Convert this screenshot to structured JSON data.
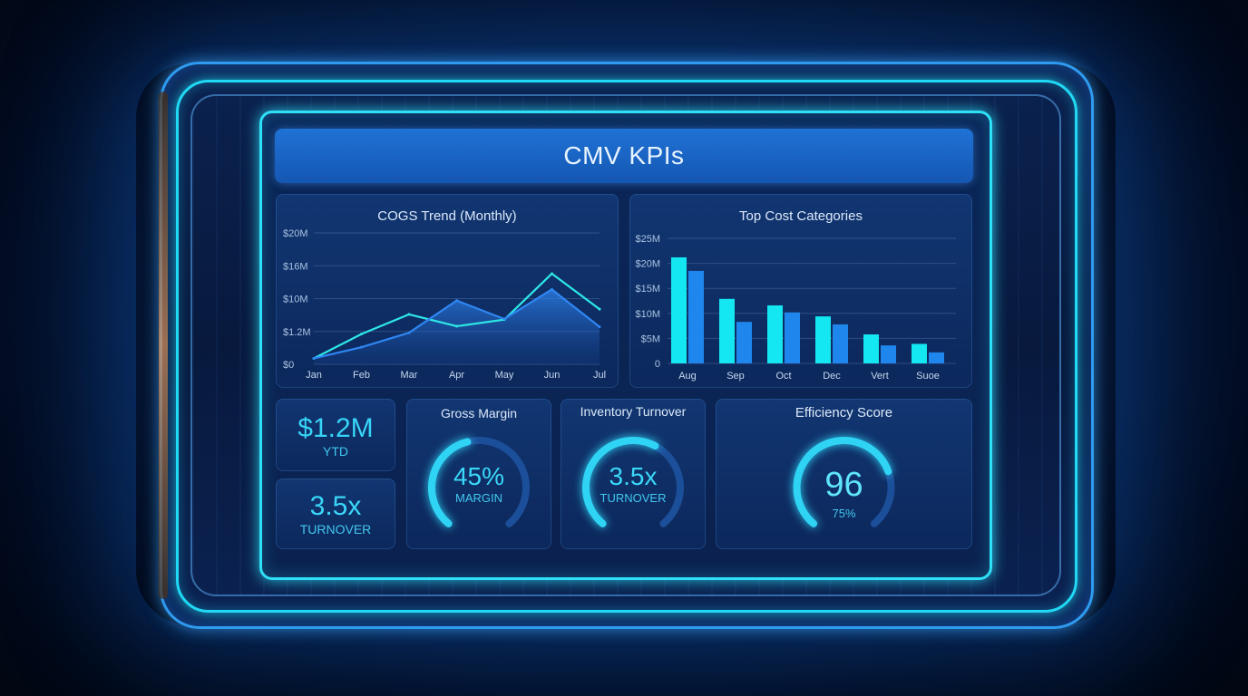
{
  "header": {
    "title": "CMV KPIs"
  },
  "colors": {
    "accent": "#2ee0f7",
    "line_primary": "#2ee8e6",
    "line_secondary": "#2f86f2",
    "bar_primary": "#14e6f2",
    "bar_secondary": "#1f86ee"
  },
  "chart_data": [
    {
      "type": "line",
      "title": "COGS Trend (Monthly)",
      "x": [
        "Jan",
        "Feb",
        "Mar",
        "Apr",
        "May",
        "Jun",
        "Jul"
      ],
      "y_ticks": [
        "$0",
        "$1.2M",
        "$10M",
        "$16M",
        "$20M"
      ],
      "ylim": [
        0,
        20
      ],
      "series": [
        {
          "values": [
            0.9,
            4.6,
            7.6,
            5.8,
            6.8,
            13.8,
            8.4
          ]
        },
        {
          "values": [
            0.9,
            2.6,
            4.8,
            9.7,
            6.9,
            11.4,
            5.7
          ]
        }
      ],
      "area_under": 1,
      "grid": true
    },
    {
      "type": "bar",
      "title": "Top Cost Categories",
      "categories": [
        "Aug",
        "Sep",
        "Oct",
        "Dec",
        "Vert",
        "Suoe"
      ],
      "y_ticks": [
        "0",
        "$5M",
        "$10M",
        "$15M",
        "$20M",
        "$25M"
      ],
      "ylim": [
        0,
        25
      ],
      "series": [
        {
          "values": [
            21.2,
            12.9,
            11.6,
            9.4,
            5.8,
            3.9
          ]
        },
        {
          "values": [
            18.5,
            8.3,
            10.2,
            7.8,
            3.6,
            2.2
          ]
        }
      ],
      "grid": true
    }
  ],
  "kpis": {
    "ytd": {
      "value": "$1.2M",
      "label": "YTD"
    },
    "turnover_card": {
      "value": "3.5x",
      "label": "TURNOVER"
    },
    "gross_margin": {
      "title": "Gross Margin",
      "value": "45%",
      "label": "MARGIN",
      "fraction": 0.45
    },
    "inventory_turnover": {
      "title": "Inventory Turnover",
      "value": "3.5x",
      "label": "TURNOVER",
      "fraction": 0.6
    },
    "efficiency": {
      "title": "Efficiency Score",
      "value": "96",
      "label": "75%",
      "fraction": 0.75
    }
  }
}
